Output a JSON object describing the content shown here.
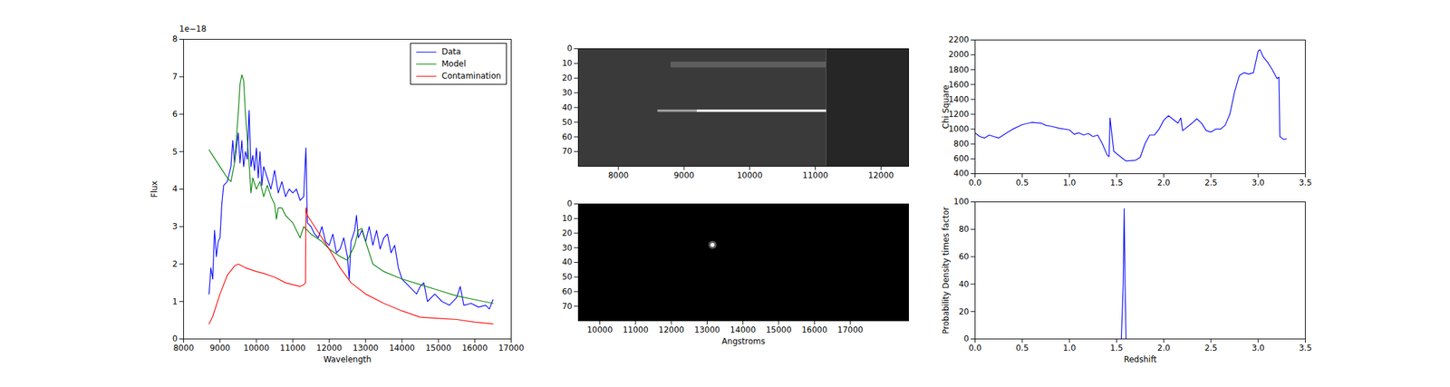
{
  "chart_data": [
    {
      "type": "line",
      "x_label": "Wavelength",
      "y_label": "Flux",
      "annotation": "1e−18",
      "xlim": [
        8000,
        17000
      ],
      "xticks": [
        8000,
        9000,
        10000,
        11000,
        12000,
        13000,
        14000,
        15000,
        16000,
        17000
      ],
      "ylim": [
        0,
        8
      ],
      "yticks": [
        0,
        1,
        2,
        3,
        4,
        5,
        6,
        7,
        8
      ],
      "legend": "upper right",
      "series": [
        {
          "name": "Data",
          "color": "#0000ff",
          "x": [
            8700,
            8750,
            8800,
            8850,
            8900,
            8950,
            9000,
            9050,
            9100,
            9200,
            9300,
            9350,
            9400,
            9450,
            9500,
            9550,
            9600,
            9650,
            9700,
            9750,
            9800,
            9850,
            9900,
            9950,
            10000,
            10050,
            10100,
            10150,
            10200,
            10300,
            10400,
            10500,
            10600,
            10700,
            10800,
            10900,
            11000,
            11100,
            11200,
            11300,
            11360,
            11400,
            11500,
            11600,
            11700,
            11800,
            11900,
            12000,
            12100,
            12200,
            12300,
            12400,
            12500,
            12550,
            12600,
            12700,
            12750,
            12800,
            12900,
            13000,
            13100,
            13200,
            13300,
            13400,
            13500,
            13600,
            13700,
            13800,
            13900,
            14000,
            14200,
            14400,
            14500,
            14600,
            14700,
            14900,
            15100,
            15300,
            15500,
            15600,
            15700,
            15900,
            16100,
            16300,
            16400,
            16500
          ],
          "values": [
            1.2,
            1.9,
            1.6,
            2.9,
            2.2,
            2.6,
            2.7,
            3.6,
            4.1,
            4.2,
            4.6,
            5.3,
            4.7,
            5.1,
            5.5,
            4.7,
            5.3,
            4.6,
            5.0,
            4.8,
            6.1,
            4.6,
            4.9,
            4.5,
            5.1,
            4.3,
            5.0,
            4.1,
            4.6,
            4.3,
            4.0,
            4.5,
            3.9,
            4.2,
            3.8,
            4.0,
            3.9,
            4.0,
            3.7,
            3.8,
            5.1,
            3.1,
            3.0,
            2.8,
            2.7,
            3.0,
            2.6,
            2.5,
            2.8,
            2.3,
            2.4,
            2.7,
            2.2,
            1.6,
            2.6,
            2.9,
            3.3,
            2.7,
            2.9,
            2.6,
            3.0,
            2.5,
            2.9,
            2.4,
            2.7,
            2.8,
            2.3,
            2.5,
            1.9,
            1.6,
            1.4,
            1.2,
            1.4,
            1.5,
            1.0,
            1.2,
            1.0,
            0.9,
            1.1,
            1.4,
            0.9,
            0.95,
            0.85,
            0.9,
            0.8,
            1.05
          ]
        },
        {
          "name": "Model",
          "color": "#008000",
          "x": [
            8700,
            8800,
            9000,
            9200,
            9300,
            9400,
            9500,
            9550,
            9600,
            9650,
            9700,
            9800,
            9850,
            9900,
            10000,
            10100,
            10200,
            10300,
            10400,
            10500,
            10550,
            10600,
            10700,
            10800,
            10900,
            11000,
            11100,
            11200,
            11300,
            11500,
            11800,
            12000,
            12300,
            12500,
            12700,
            12800,
            12900,
            13000,
            13200,
            13500,
            14000,
            14500,
            15000,
            15500,
            16000,
            16500
          ],
          "values": [
            5.05,
            4.9,
            4.6,
            4.3,
            4.2,
            4.7,
            6.0,
            6.8,
            7.05,
            6.9,
            6.0,
            4.7,
            3.9,
            4.3,
            4.0,
            4.2,
            3.8,
            4.1,
            3.8,
            3.6,
            3.2,
            3.5,
            3.5,
            3.3,
            3.2,
            3.1,
            2.9,
            2.7,
            3.0,
            2.8,
            2.6,
            2.4,
            2.2,
            2.1,
            2.5,
            2.9,
            2.95,
            2.6,
            2.0,
            1.8,
            1.6,
            1.45,
            1.3,
            1.15,
            1.05,
            0.95
          ]
        },
        {
          "name": "Contamination",
          "color": "#ff0000",
          "x": [
            8700,
            8800,
            9000,
            9200,
            9400,
            9500,
            9700,
            10000,
            10200,
            10500,
            10800,
            11000,
            11200,
            11300,
            11350,
            11360,
            11400,
            11600,
            12000,
            12300,
            12600,
            13000,
            13500,
            14000,
            14500,
            15000,
            15500,
            16000,
            16500
          ],
          "values": [
            0.4,
            0.6,
            1.2,
            1.7,
            1.95,
            2.0,
            1.9,
            1.8,
            1.75,
            1.65,
            1.5,
            1.45,
            1.4,
            1.45,
            1.5,
            3.5,
            3.3,
            3.0,
            2.4,
            1.9,
            1.5,
            1.2,
            0.95,
            0.75,
            0.58,
            0.55,
            0.52,
            0.45,
            0.4
          ]
        }
      ]
    },
    {
      "type": "image",
      "xlim": [
        7390,
        12420
      ],
      "xticks": [
        8000,
        9000,
        10000,
        11000,
        12000
      ],
      "ylim": [
        80,
        0
      ],
      "yticks": [
        0,
        10,
        20,
        30,
        40,
        50,
        60,
        70
      ],
      "features": [
        {
          "x": [
            7390,
            11170
          ],
          "y": [
            0,
            80
          ],
          "color": "#3a3a3a"
        },
        {
          "x": [
            11170,
            12420
          ],
          "y": [
            0,
            80
          ],
          "color": "#262626"
        },
        {
          "x": [
            8800,
            11170
          ],
          "y": [
            9,
            13
          ],
          "color": "#5e5e5e"
        },
        {
          "x": [
            8600,
            9200
          ],
          "y": [
            41.6,
            43.2
          ],
          "color": "#a0a0a0"
        },
        {
          "x": [
            9200,
            11170
          ],
          "y": [
            41.6,
            43.2
          ],
          "color": "#ffffff"
        }
      ]
    },
    {
      "type": "image",
      "x_label": "Angstroms",
      "xlim": [
        9400,
        18630
      ],
      "xticks": [
        10000,
        11000,
        12000,
        13000,
        14000,
        15000,
        16000,
        17000
      ],
      "ylim": [
        80,
        0
      ],
      "yticks": [
        0,
        10,
        20,
        30,
        40,
        50,
        60,
        70
      ],
      "features": [
        {
          "x": [
            9400,
            18630
          ],
          "y": [
            0,
            80
          ],
          "color": "#000000"
        },
        {
          "x": 13150,
          "y": 28,
          "color": "#ffffff"
        }
      ]
    },
    {
      "type": "line",
      "y_label": "Chi Square",
      "xlim": [
        0,
        3.5
      ],
      "xticks": [
        {
          "value": 0,
          "label": "0.0"
        },
        {
          "value": 0.5,
          "label": "0.5"
        },
        {
          "value": 1,
          "label": "1.0"
        },
        {
          "value": 1.5,
          "label": "1.5"
        },
        {
          "value": 2,
          "label": "2.0"
        },
        {
          "value": 2.5,
          "label": "2.5"
        },
        {
          "value": 3,
          "label": "3.0"
        },
        {
          "value": 3.5,
          "label": "3.5"
        }
      ],
      "ylim": [
        400,
        2200
      ],
      "yticks": [
        400,
        600,
        800,
        1000,
        1200,
        1400,
        1600,
        1800,
        2000,
        2200
      ],
      "color": "#0000ff",
      "x": [
        0,
        0.05,
        0.1,
        0.15,
        0.2,
        0.25,
        0.3,
        0.35,
        0.4,
        0.5,
        0.6,
        0.7,
        0.75,
        0.8,
        0.9,
        1.0,
        1.05,
        1.1,
        1.15,
        1.2,
        1.25,
        1.3,
        1.35,
        1.4,
        1.42,
        1.43,
        1.47,
        1.55,
        1.6,
        1.7,
        1.75,
        1.8,
        1.85,
        1.9,
        1.95,
        2.0,
        2.05,
        2.1,
        2.15,
        2.18,
        2.2,
        2.3,
        2.35,
        2.4,
        2.45,
        2.5,
        2.55,
        2.6,
        2.65,
        2.7,
        2.75,
        2.8,
        2.85,
        2.9,
        2.95,
        3.0,
        3.02,
        3.05,
        3.1,
        3.15,
        3.2,
        3.22,
        3.23,
        3.27,
        3.3
      ],
      "values": [
        950,
        900,
        880,
        920,
        900,
        880,
        920,
        960,
        1000,
        1060,
        1090,
        1080,
        1050,
        1040,
        1010,
        990,
        930,
        950,
        920,
        940,
        900,
        920,
        800,
        650,
        630,
        1150,
        700,
        620,
        570,
        580,
        620,
        800,
        920,
        920,
        1000,
        1120,
        1180,
        1130,
        1080,
        1150,
        980,
        1080,
        1140,
        1080,
        980,
        960,
        1000,
        1000,
        1050,
        1200,
        1500,
        1720,
        1760,
        1740,
        1760,
        2050,
        2070,
        1980,
        1900,
        1800,
        1680,
        1700,
        900,
        860,
        870
      ]
    },
    {
      "type": "line",
      "x_label": "Redshift",
      "y_label": "Probability Density times factor",
      "xlim": [
        0,
        3.5
      ],
      "xticks": [
        {
          "value": 0,
          "label": "0.0"
        },
        {
          "value": 0.5,
          "label": "0.5"
        },
        {
          "value": 1,
          "label": "1.0"
        },
        {
          "value": 1.5,
          "label": "1.5"
        },
        {
          "value": 2,
          "label": "2.0"
        },
        {
          "value": 2.5,
          "label": "2.5"
        },
        {
          "value": 3,
          "label": "3.0"
        },
        {
          "value": 3.5,
          "label": "3.5"
        }
      ],
      "ylim": [
        0,
        100
      ],
      "yticks": [
        0,
        20,
        40,
        60,
        80,
        100
      ],
      "color": "#0000ff",
      "x": [
        0,
        1.55,
        1.57,
        1.58,
        1.59,
        1.6,
        3.3
      ],
      "values": [
        0,
        0,
        40,
        95,
        40,
        0,
        0
      ]
    }
  ]
}
